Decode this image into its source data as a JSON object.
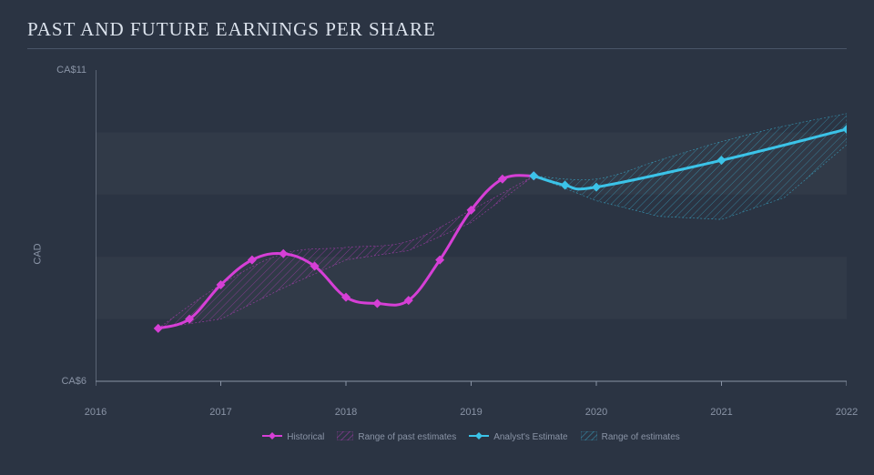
{
  "title": "PAST AND FUTURE EARNINGS PER SHARE",
  "y_axis_label": "CAD",
  "chart": {
    "type": "line-area",
    "background_color": "#2b3443",
    "grid_band_color": "rgba(255,255,255,0.03)",
    "axis_color": "#8a94a6",
    "x_domain": [
      2016,
      2022
    ],
    "y_domain": [
      6,
      11
    ],
    "y_ticks": [
      {
        "v": 6,
        "label": "CA$6"
      },
      {
        "v": 11,
        "label": "CA$11"
      }
    ],
    "x_ticks": [
      {
        "v": 2016,
        "label": "2016"
      },
      {
        "v": 2017,
        "label": "2017"
      },
      {
        "v": 2018,
        "label": "2018"
      },
      {
        "v": 2019,
        "label": "2019"
      },
      {
        "v": 2020,
        "label": "2020"
      },
      {
        "v": 2021,
        "label": "2021"
      },
      {
        "v": 2022,
        "label": "2022"
      }
    ],
    "grid_bands_y": [
      [
        7,
        8
      ],
      [
        9,
        10
      ]
    ],
    "series": {
      "historical": {
        "label": "Historical",
        "color": "#d63fd6",
        "line_width": 3,
        "marker": "diamond",
        "marker_size": 7,
        "points": [
          {
            "x": 2016.5,
            "y": 6.85
          },
          {
            "x": 2016.75,
            "y": 7.0
          },
          {
            "x": 2017.0,
            "y": 7.55
          },
          {
            "x": 2017.25,
            "y": 7.95
          },
          {
            "x": 2017.5,
            "y": 8.05
          },
          {
            "x": 2017.75,
            "y": 7.85
          },
          {
            "x": 2018.0,
            "y": 7.35
          },
          {
            "x": 2018.25,
            "y": 7.25
          },
          {
            "x": 2018.5,
            "y": 7.3
          },
          {
            "x": 2018.75,
            "y": 7.95
          },
          {
            "x": 2019.0,
            "y": 8.75
          },
          {
            "x": 2019.25,
            "y": 9.25
          },
          {
            "x": 2019.5,
            "y": 9.3
          }
        ]
      },
      "past_estimates_range": {
        "label": "Range of past estimates",
        "color": "#d63fd6",
        "fill_opacity": 0.18,
        "hatch": true,
        "upper": [
          {
            "x": 2016.5,
            "y": 6.85
          },
          {
            "x": 2017.0,
            "y": 7.55
          },
          {
            "x": 2017.5,
            "y": 8.05
          },
          {
            "x": 2018.0,
            "y": 8.15
          },
          {
            "x": 2018.5,
            "y": 8.25
          },
          {
            "x": 2019.0,
            "y": 8.75
          },
          {
            "x": 2019.5,
            "y": 9.3
          }
        ],
        "lower": [
          {
            "x": 2016.5,
            "y": 6.85
          },
          {
            "x": 2017.0,
            "y": 7.0
          },
          {
            "x": 2017.5,
            "y": 7.5
          },
          {
            "x": 2018.0,
            "y": 7.95
          },
          {
            "x": 2018.5,
            "y": 8.1
          },
          {
            "x": 2019.0,
            "y": 8.55
          },
          {
            "x": 2019.5,
            "y": 9.3
          }
        ]
      },
      "estimate": {
        "label": "Analyst's Estimate",
        "color": "#3bc3e8",
        "line_width": 3,
        "marker": "diamond",
        "marker_size": 7,
        "points": [
          {
            "x": 2019.5,
            "y": 9.3
          },
          {
            "x": 2019.75,
            "y": 9.15
          },
          {
            "x": 2020.0,
            "y": 9.12
          },
          {
            "x": 2021.0,
            "y": 9.55
          },
          {
            "x": 2022.0,
            "y": 10.05
          }
        ]
      },
      "estimates_range": {
        "label": "Range of estimates",
        "color": "#3bc3e8",
        "fill_opacity": 0.18,
        "hatch": true,
        "upper": [
          {
            "x": 2019.5,
            "y": 9.3
          },
          {
            "x": 2020.0,
            "y": 9.25
          },
          {
            "x": 2020.5,
            "y": 9.55
          },
          {
            "x": 2021.0,
            "y": 9.85
          },
          {
            "x": 2021.5,
            "y": 10.1
          },
          {
            "x": 2022.0,
            "y": 10.3
          }
        ],
        "lower": [
          {
            "x": 2019.5,
            "y": 9.3
          },
          {
            "x": 2020.0,
            "y": 8.9
          },
          {
            "x": 2020.5,
            "y": 8.65
          },
          {
            "x": 2021.0,
            "y": 8.6
          },
          {
            "x": 2021.5,
            "y": 8.95
          },
          {
            "x": 2022.0,
            "y": 9.8
          }
        ]
      }
    }
  },
  "legend": [
    {
      "key": "historical",
      "label": "Historical",
      "color": "#d63fd6",
      "style": "diamond-line"
    },
    {
      "key": "past_estimates_range",
      "label": "Range of past estimates",
      "color": "#d63fd6",
      "style": "hatch"
    },
    {
      "key": "estimate",
      "label": "Analyst's Estimate",
      "color": "#3bc3e8",
      "style": "diamond-line"
    },
    {
      "key": "estimates_range",
      "label": "Range of estimates",
      "color": "#3bc3e8",
      "style": "hatch"
    }
  ]
}
